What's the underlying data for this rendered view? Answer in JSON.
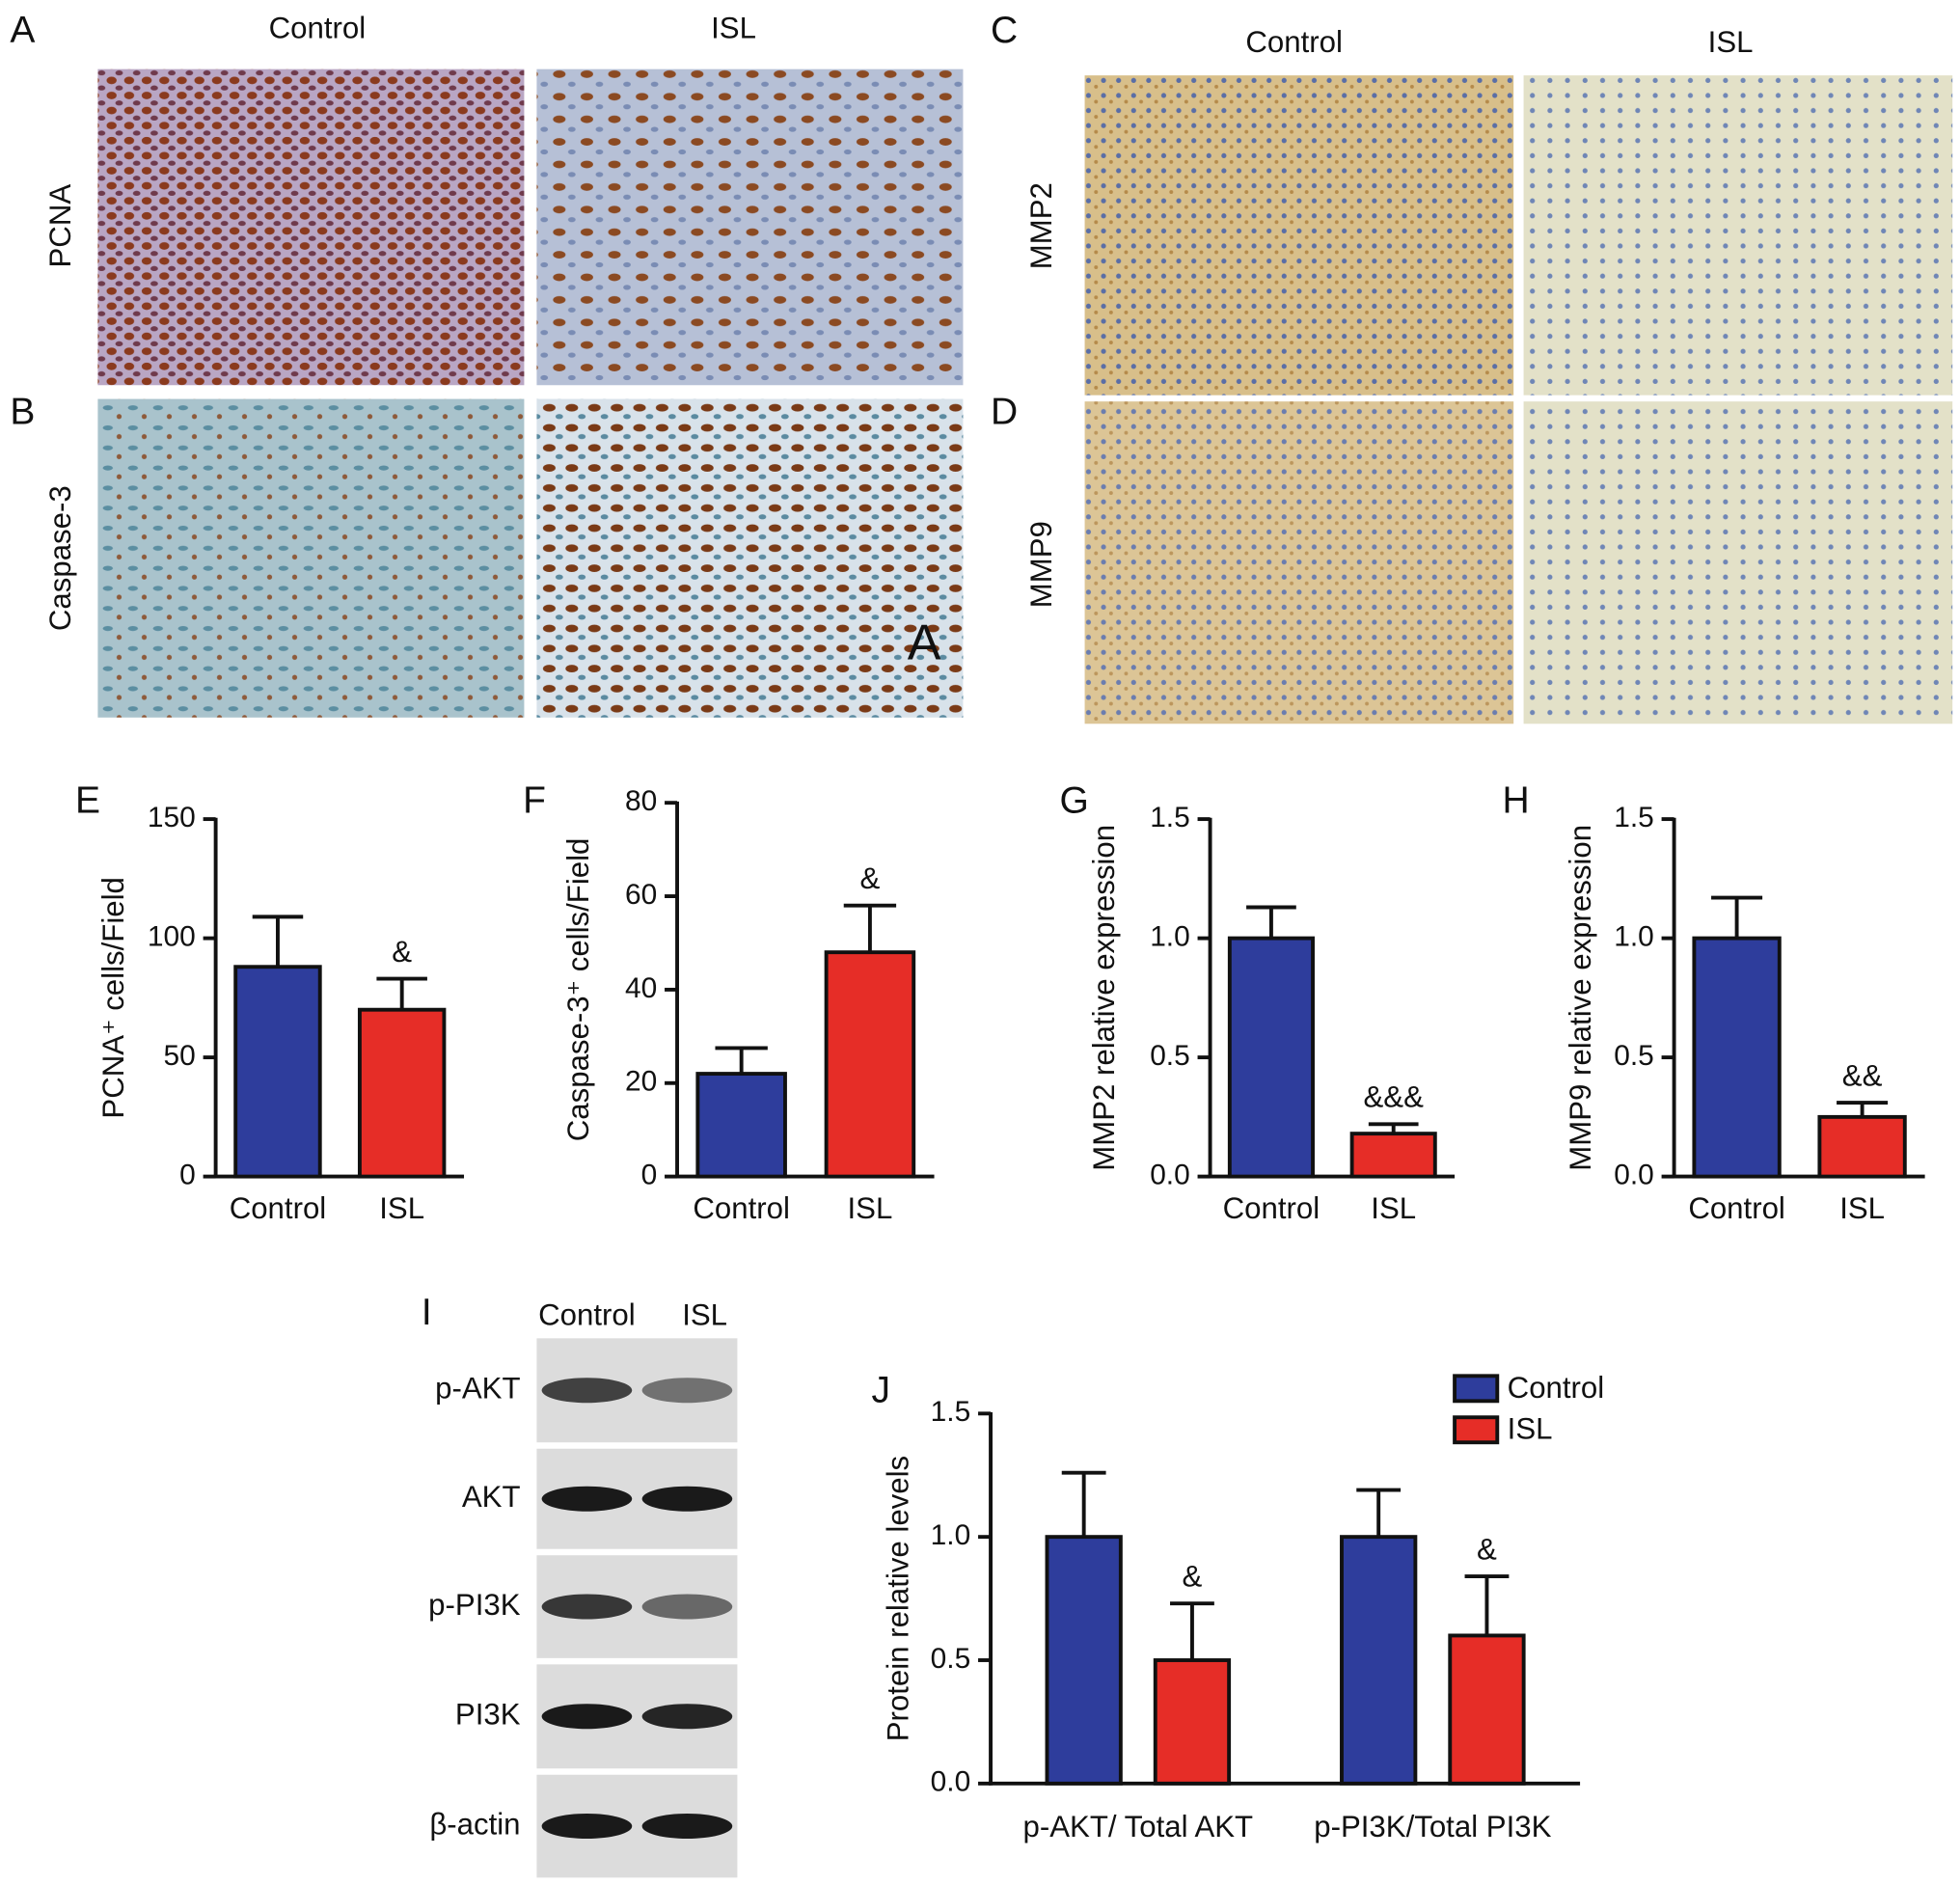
{
  "micrographs": {
    "left": {
      "columns": [
        "Control",
        "ISL"
      ],
      "rows": [
        {
          "letter": "A",
          "label": "PCNA"
        },
        {
          "letter": "B",
          "label": "Caspase-3"
        }
      ],
      "image_mark": "A"
    },
    "right": {
      "columns": [
        "Control",
        "ISL"
      ],
      "rows": [
        {
          "letter": "C",
          "label": "MMP2"
        },
        {
          "letter": "D",
          "label": "MMP9"
        }
      ]
    }
  },
  "western_blot": {
    "letter": "I",
    "columns": [
      "Control",
      "ISL"
    ],
    "rows": [
      "p-AKT",
      "AKT",
      "p-PI3K",
      "PI3K",
      "β-actin"
    ]
  },
  "chart_data": [
    {
      "type": "bar",
      "letter": "E",
      "ylabel": "PCNA⁺ cells/Field",
      "categories": [
        "Control",
        "ISL"
      ],
      "values": [
        88,
        70
      ],
      "errors": [
        21,
        13
      ],
      "colors": [
        "#2e3d9c",
        "#e62d27"
      ],
      "ylim": [
        0,
        150
      ],
      "yticks": [
        0,
        50,
        100,
        150
      ],
      "annotations": [
        {
          "category": "ISL",
          "text": "&"
        }
      ]
    },
    {
      "type": "bar",
      "letter": "F",
      "ylabel": "Caspase-3⁺ cells/Field",
      "categories": [
        "Control",
        "ISL"
      ],
      "values": [
        22,
        48
      ],
      "errors": [
        5.5,
        10
      ],
      "colors": [
        "#2e3d9c",
        "#e62d27"
      ],
      "ylim": [
        0,
        80
      ],
      "yticks": [
        0,
        20,
        40,
        60,
        80
      ],
      "annotations": [
        {
          "category": "ISL",
          "text": "&"
        }
      ]
    },
    {
      "type": "bar",
      "letter": "G",
      "ylabel": "MMP2 relative expression",
      "categories": [
        "Control",
        "ISL"
      ],
      "values": [
        1.0,
        0.18
      ],
      "errors": [
        0.13,
        0.04
      ],
      "colors": [
        "#2e3d9c",
        "#e62d27"
      ],
      "ylim": [
        0,
        1.5
      ],
      "yticks": [
        {
          "value": 0,
          "label": "0.0"
        },
        0.5,
        {
          "value": 1,
          "label": "1.0"
        },
        1.5
      ],
      "annotations": [
        {
          "category": "ISL",
          "text": "&&&"
        }
      ]
    },
    {
      "type": "bar",
      "letter": "H",
      "ylabel": "MMP9 relative expression",
      "categories": [
        "Control",
        "ISL"
      ],
      "values": [
        1.0,
        0.25
      ],
      "errors": [
        0.17,
        0.06
      ],
      "colors": [
        "#2e3d9c",
        "#e62d27"
      ],
      "ylim": [
        0,
        1.5
      ],
      "yticks": [
        {
          "value": 0,
          "label": "0.0"
        },
        0.5,
        {
          "value": 1,
          "label": "1.0"
        },
        1.5
      ],
      "annotations": [
        {
          "category": "ISL",
          "text": "&&"
        }
      ]
    },
    {
      "type": "grouped_bar",
      "letter": "J",
      "ylabel": "Protein relative levels",
      "categories": [
        "p-AKT/ Total AKT",
        "p-PI3K/Total PI3K"
      ],
      "series": [
        {
          "name": "Control",
          "color": "#2e3d9c",
          "values": [
            1.0,
            1.0
          ],
          "errors": [
            0.26,
            0.19
          ]
        },
        {
          "name": "ISL",
          "color": "#e62d27",
          "values": [
            0.5,
            0.6
          ],
          "errors": [
            0.23,
            0.24
          ]
        }
      ],
      "ylim": [
        0,
        1.5
      ],
      "yticks": [
        {
          "value": 0,
          "label": "0.0"
        },
        0.5,
        {
          "value": 1,
          "label": "1.0"
        },
        1.5
      ],
      "legend": "top-right",
      "annotations": [
        {
          "series": "ISL",
          "category": "p-AKT/ Total AKT",
          "text": "&"
        },
        {
          "series": "ISL",
          "category": "p-PI3K/Total PI3K",
          "text": "&"
        }
      ]
    }
  ]
}
